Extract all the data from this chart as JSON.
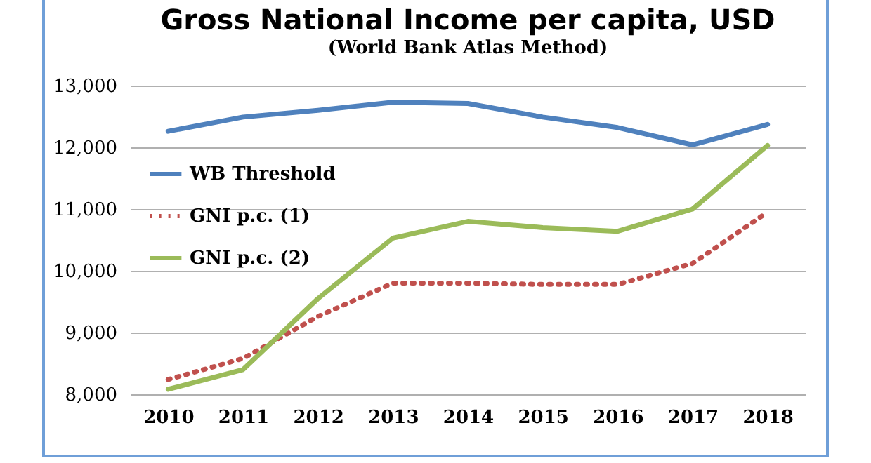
{
  "chart_data": {
    "type": "line",
    "title": "Gross National Income per capita, USD",
    "subtitle": "(World Bank Atlas Method)",
    "categories": [
      "2010",
      "2011",
      "2012",
      "2013",
      "2014",
      "2015",
      "2016",
      "2017",
      "2018"
    ],
    "series": [
      {
        "name": "WB Threshold",
        "color": "#4f81bd",
        "line_style": "solid",
        "values": [
          12260,
          12490,
          12600,
          12730,
          12710,
          12490,
          12320,
          12040,
          12370
        ]
      },
      {
        "name": "GNI p.c. (1)",
        "color": "#c0504d",
        "line_style": "dotted",
        "values": [
          8240,
          8580,
          9260,
          9800,
          9800,
          9780,
          9780,
          10120,
          10950
        ]
      },
      {
        "name": "GNI p.c. (2)",
        "color": "#9bbb59",
        "line_style": "solid",
        "values": [
          8080,
          8400,
          9550,
          10530,
          10800,
          10700,
          10640,
          11000,
          12030
        ]
      }
    ],
    "ylim": [
      8000,
      13000
    ],
    "yticks": [
      {
        "value": 8000,
        "label": "8,000"
      },
      {
        "value": 9000,
        "label": "9,000"
      },
      {
        "value": 10000,
        "label": "10,000"
      },
      {
        "value": 11000,
        "label": "11,000"
      },
      {
        "value": 12000,
        "label": "12,000"
      },
      {
        "value": 13000,
        "label": "13,000"
      }
    ],
    "grid": "y",
    "legend": "top left",
    "marker": "none"
  }
}
